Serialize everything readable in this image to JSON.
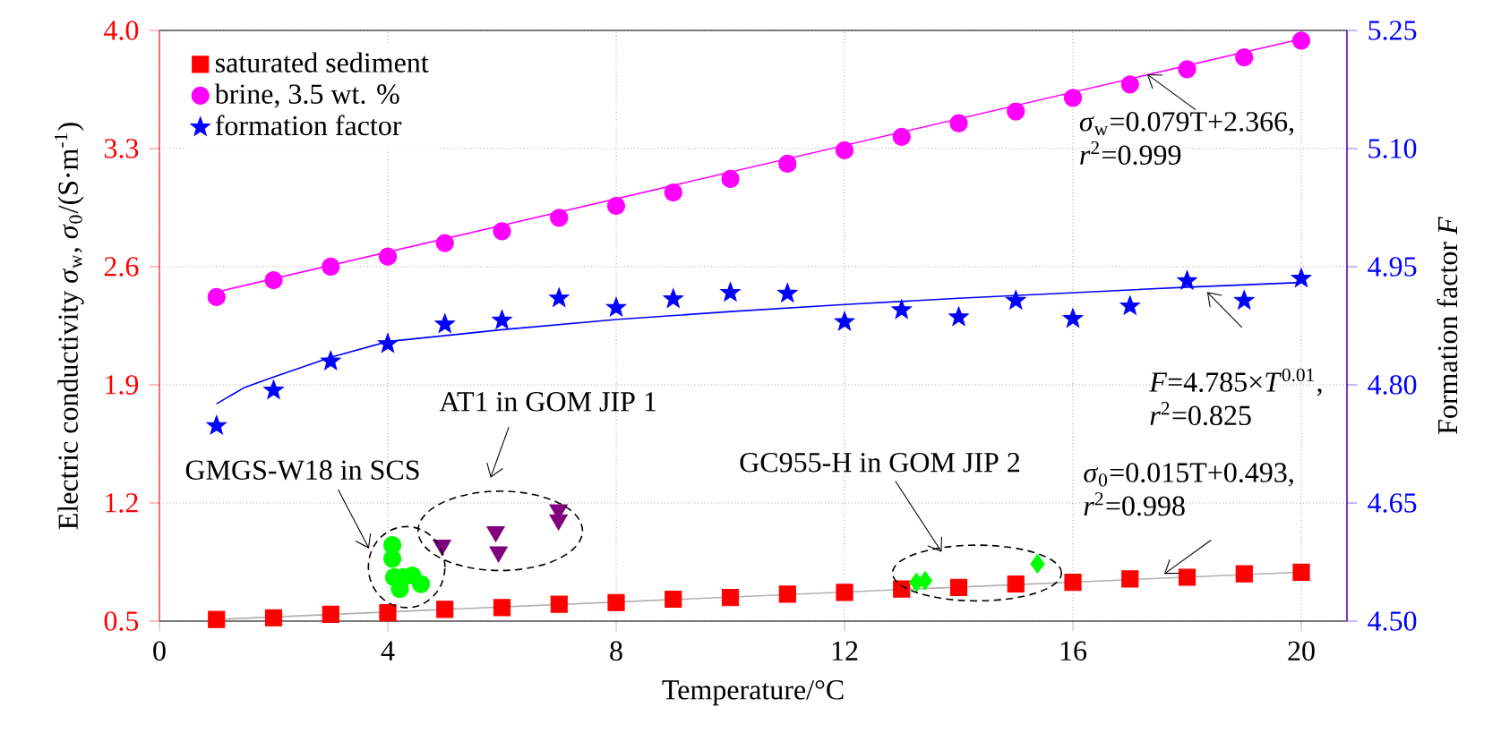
{
  "chart_data": {
    "type": "scatter",
    "xlabel": "Temperature/°C",
    "ylabel": "Electric conductivity *σ*$_{w}$, *σ*$_{0}$/(S·m$^{-1}$)",
    "y2label": "Formation factor *F*",
    "xlim": [
      0,
      20.8
    ],
    "xticks": [
      0,
      4,
      8,
      12,
      16,
      20
    ],
    "ylim": [
      0.5,
      4.0
    ],
    "yticks": [
      0.5,
      1.2,
      1.9,
      2.6,
      3.3,
      {
        "value": 4.0,
        "label": "4.0"
      }
    ],
    "y2lim": [
      4.5,
      5.25
    ],
    "y2ticks": [
      {
        "value": 4.5,
        "label": "4.50"
      },
      4.65,
      {
        "value": 4.8,
        "label": "4.80"
      },
      4.95,
      {
        "value": 5.1,
        "label": "5.10"
      },
      5.25
    ],
    "grid": true,
    "legend": "top left",
    "series": [
      {
        "name": "saturated sediment",
        "marker": "square",
        "color": "#ff0000",
        "x": [
          1,
          2,
          3,
          4,
          5,
          6,
          7,
          8,
          9,
          10,
          11,
          12,
          13,
          14,
          15,
          16,
          17,
          18,
          19,
          20
        ],
        "values": [
          0.51,
          0.52,
          0.54,
          0.55,
          0.57,
          0.58,
          0.6,
          0.61,
          0.63,
          0.64,
          0.66,
          0.67,
          0.69,
          0.7,
          0.72,
          0.73,
          0.75,
          0.76,
          0.78,
          0.79
        ]
      },
      {
        "name": "brine, 3.5 wt. %",
        "marker": "circle",
        "color": "#ff00ff",
        "x": [
          1,
          2,
          3,
          4,
          5,
          6,
          7,
          8,
          9,
          10,
          11,
          12,
          13,
          14,
          15,
          16,
          17,
          18,
          19,
          20
        ],
        "values": [
          2.42,
          2.52,
          2.6,
          2.66,
          2.74,
          2.81,
          2.89,
          2.96,
          3.04,
          3.12,
          3.21,
          3.29,
          3.37,
          3.45,
          3.52,
          3.6,
          3.68,
          3.77,
          3.84,
          3.94
        ]
      },
      {
        "name": "formation factor",
        "marker": "star",
        "color": "#0000ff",
        "axis": "y2",
        "x": [
          1,
          2,
          3,
          4,
          5,
          6,
          7,
          8,
          9,
          10,
          11,
          12,
          13,
          14,
          15,
          16,
          17,
          18,
          19,
          20
        ],
        "values": [
          4.748,
          4.793,
          4.83,
          4.852,
          4.877,
          4.882,
          4.91,
          4.898,
          4.909,
          4.917,
          4.916,
          4.88,
          4.895,
          4.886,
          4.907,
          4.884,
          4.9,
          4.932,
          4.907,
          4.935
        ]
      },
      {
        "type": "line",
        "color": "#b0b0b0",
        "x": [
          1,
          20
        ],
        "values": [
          0.51,
          0.79
        ]
      },
      {
        "type": "line",
        "color": "#ff00ff",
        "x": [
          1,
          20
        ],
        "values": [
          2.45,
          3.95
        ]
      },
      {
        "type": "line",
        "color": "#0000ff",
        "axis": "y2",
        "x": [
          1,
          1.5,
          2,
          3,
          4,
          6,
          8,
          10,
          12,
          14,
          16,
          18,
          20
        ],
        "values": [
          4.776,
          4.797,
          4.81,
          4.835,
          4.855,
          4.87,
          4.883,
          4.893,
          4.902,
          4.91,
          4.917,
          4.924,
          4.93
        ]
      },
      {
        "marker": "circle",
        "color": "#00ff00",
        "x": [
          4.08,
          4.08,
          4.11,
          4.21,
          4.27,
          4.43,
          4.58
        ],
        "values": [
          0.95,
          0.87,
          0.76,
          0.69,
          0.76,
          0.77,
          0.72
        ]
      },
      {
        "marker": "triangle-down",
        "color": "#800080",
        "x": [
          4.95,
          5.89,
          5.94,
          6.99,
          6.99
        ],
        "values": [
          0.95,
          1.03,
          0.91,
          1.16,
          1.1
        ]
      },
      {
        "marker": "diamond",
        "color": "#00ff00",
        "x": [
          13.26,
          13.41,
          15.38
        ],
        "values": [
          0.73,
          0.74,
          0.84
        ]
      }
    ],
    "annotations": [
      {
        "text": "*σ*$_{w}$=0.079T+2.366, *r*$^{2}$=0.999",
        "x": 17.3,
        "y": 3.74
      },
      "*F*=4.785×*T*$^{0.01}$, *r*$^{2}$=0.825",
      "GMGS-W18 in SCS",
      "AT1 in GOM JIP 1",
      "GC955-H in GOM JIP 2",
      {
        "text": "*σ*$_{0}$=0.015T+0.493, *r*$^{2}$=0.998",
        "x": 17.6,
        "y": 0.78
      }
    ]
  }
}
